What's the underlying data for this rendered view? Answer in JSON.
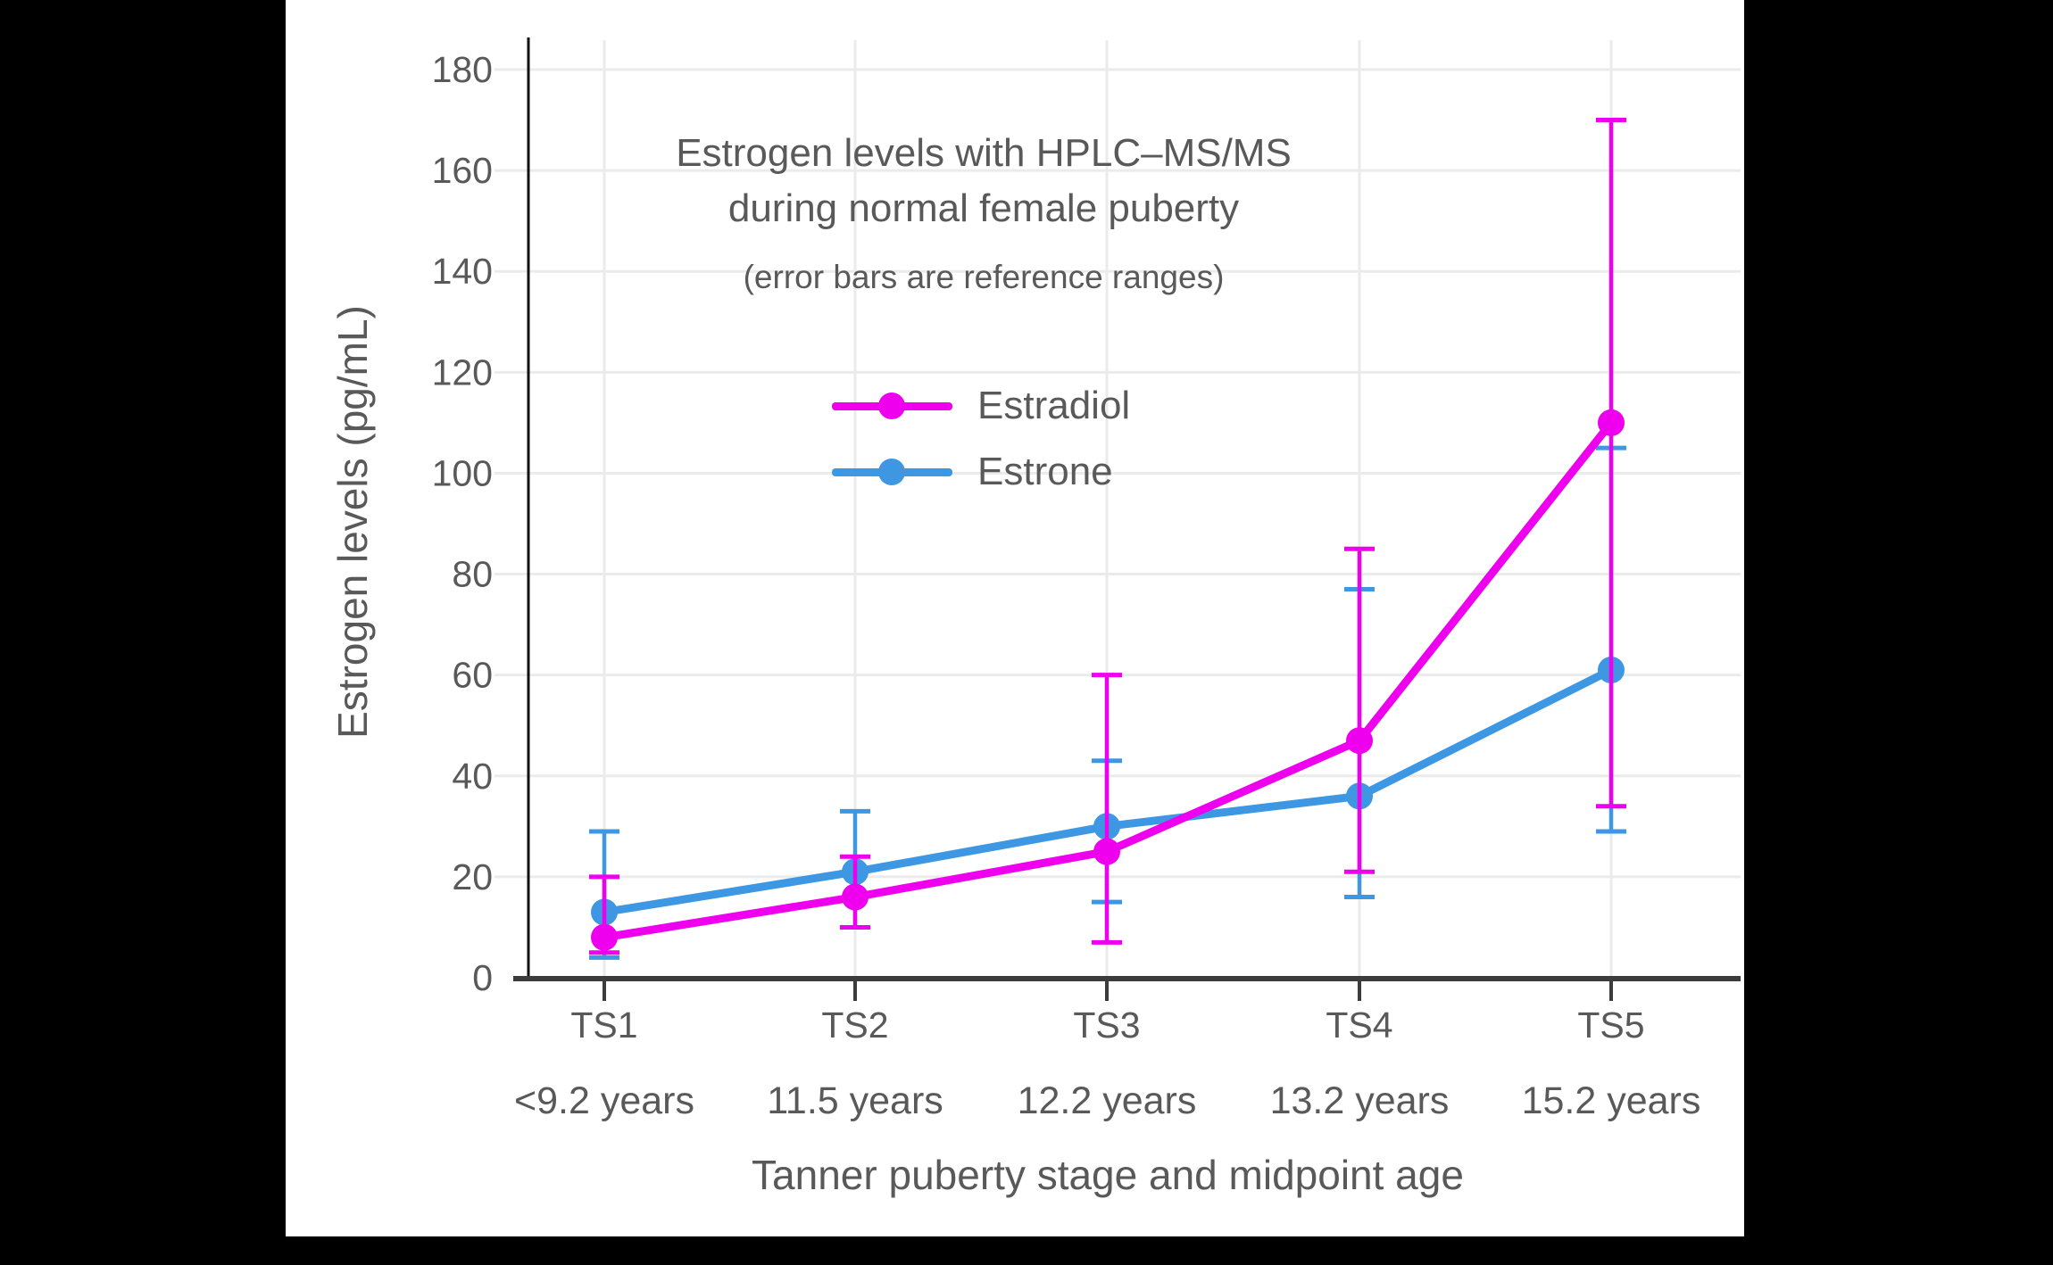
{
  "page": {
    "background": "#000000",
    "canvas_background": "#ffffff"
  },
  "chart_data": {
    "type": "line",
    "title_lines": [
      "Estrogen levels with HPLC–MS/MS",
      "during normal female puberty"
    ],
    "subtitle": "(error bars are reference ranges)",
    "xlabel": "Tanner puberty stage and midpoint age",
    "ylabel": "Estrogen levels (pg/mL)",
    "categories": [
      "TS1",
      "TS2",
      "TS3",
      "TS4",
      "TS5"
    ],
    "category_sublabels": [
      "<9.2 years",
      "11.5 years",
      "12.2 years",
      "13.2 years",
      "15.2 years"
    ],
    "y_ticks": [
      0,
      20,
      40,
      60,
      80,
      100,
      120,
      140,
      160,
      180
    ],
    "ylim": [
      0,
      186
    ],
    "grid": true,
    "legend_position": "inside-top-center",
    "error_bars": "reference ranges",
    "series": [
      {
        "name": "Estradiol",
        "color": "#EE00EE",
        "values": [
          8,
          16,
          25,
          47,
          110
        ],
        "err_low": [
          5,
          10,
          7,
          21,
          34
        ],
        "err_high": [
          20,
          24,
          60,
          85,
          170
        ]
      },
      {
        "name": "Estrone",
        "color": "#3D97E2",
        "values": [
          13,
          21,
          30,
          36,
          61
        ],
        "err_low": [
          4,
          10,
          15,
          16,
          29
        ],
        "err_high": [
          29,
          33,
          43,
          77,
          105
        ]
      }
    ],
    "styles": {
      "text_color": "#595959",
      "grid_color": "#EBEBEB",
      "axis_color": "#3C3C3C",
      "spine_color": "#111111"
    }
  }
}
